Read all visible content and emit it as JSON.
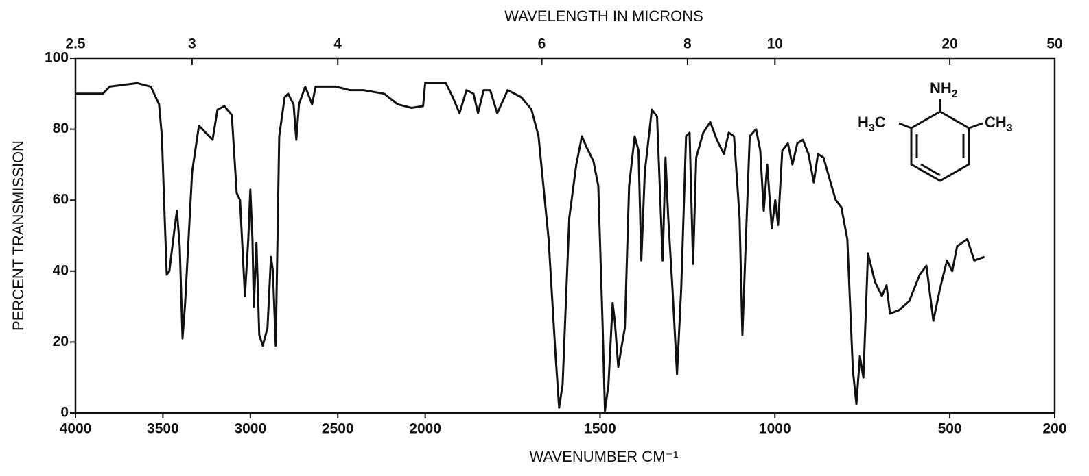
{
  "chart_data": {
    "type": "line",
    "title": "WAVELENGTH IN MICRONS",
    "xlabel": "WAVENUMBER CM⁻¹",
    "ylabel": "PERCENT TRANSMISSION",
    "xlim": [
      4000,
      200
    ],
    "xscale": {
      "break": 2000,
      "ratio": 2
    },
    "xticks": [
      4000,
      3500,
      3000,
      2500,
      2000,
      1500,
      1000,
      500,
      200
    ],
    "x2ticks": [
      2.5,
      3,
      4,
      6,
      8,
      10,
      20,
      50
    ],
    "ylim": [
      0,
      100
    ],
    "yticks": [
      0,
      20,
      40,
      60,
      80,
      100
    ],
    "color": "#111111",
    "structure_labels": [
      [
        "NH",
        "2"
      ],
      [
        "H",
        "3",
        "C"
      ],
      [
        "CH",
        "3"
      ]
    ],
    "x": [
      4000,
      3843,
      3804,
      3647,
      3569,
      3522,
      3506,
      3490,
      3478,
      3463,
      3431,
      3420,
      3404,
      3388,
      3373,
      3333,
      3294,
      3255,
      3216,
      3188,
      3149,
      3106,
      3078,
      3059,
      3031,
      3012,
      3000,
      2988,
      2980,
      2965,
      2949,
      2929,
      2902,
      2882,
      2871,
      2855,
      2835,
      2804,
      2784,
      2753,
      2737,
      2722,
      2686,
      2647,
      2627,
      2510,
      2431,
      2353,
      2235,
      2157,
      2078,
      2012,
      2000,
      1941,
      1921,
      1902,
      1882,
      1862,
      1849,
      1833,
      1814,
      1794,
      1764,
      1725,
      1696,
      1676,
      1647,
      1627,
      1617,
      1607,
      1588,
      1568,
      1552,
      1539,
      1519,
      1505,
      1493,
      1486,
      1476,
      1464,
      1458,
      1448,
      1438,
      1429,
      1417,
      1401,
      1390,
      1382,
      1372,
      1352,
      1337,
      1321,
      1313,
      1305,
      1293,
      1280,
      1268,
      1254,
      1244,
      1234,
      1225,
      1205,
      1185,
      1166,
      1146,
      1132,
      1117,
      1101,
      1093,
      1083,
      1072,
      1054,
      1042,
      1032,
      1022,
      1009,
      999,
      991,
      979,
      963,
      950,
      936,
      920,
      904,
      889,
      877,
      861,
      838,
      826,
      810,
      793,
      777,
      767,
      757,
      747,
      734,
      714,
      694,
      681,
      671,
      645,
      616,
      586,
      567,
      547,
      528,
      508,
      493,
      479,
      450,
      430,
      401
    ],
    "y": [
      90,
      90,
      92,
      93,
      92,
      87,
      78,
      55,
      39,
      40,
      53,
      57,
      47,
      21,
      31,
      68,
      81,
      79,
      77,
      85.5,
      86.5,
      84,
      62,
      60,
      33,
      49,
      63,
      49,
      30,
      48,
      22,
      19,
      24,
      44,
      40,
      19,
      78,
      89,
      90,
      87,
      77,
      87,
      92,
      87,
      92,
      92,
      91,
      91,
      90,
      87,
      86,
      86.5,
      93,
      93,
      89,
      84.5,
      91,
      90,
      84.5,
      91,
      91,
      84.5,
      91,
      89,
      85.5,
      78,
      49,
      16,
      1.5,
      8,
      55,
      70,
      78,
      75,
      71,
      64,
      26,
      0.6,
      8,
      31,
      26,
      13,
      19,
      24,
      64,
      78,
      74,
      43,
      68,
      85.5,
      83.6,
      43,
      72,
      55,
      35,
      11,
      35,
      78,
      79,
      42,
      72,
      79,
      82,
      77,
      73,
      79,
      78,
      55,
      22,
      49,
      78,
      80,
      74,
      57,
      70,
      52,
      60,
      53,
      74,
      76,
      70,
      76,
      77,
      73,
      65,
      73,
      72,
      64,
      60,
      58,
      49,
      12,
      2.5,
      16,
      10,
      45,
      37,
      33,
      36,
      28,
      29,
      31.5,
      39,
      41.5,
      26,
      35,
      43,
      40,
      47,
      49,
      43,
      44
    ]
  }
}
